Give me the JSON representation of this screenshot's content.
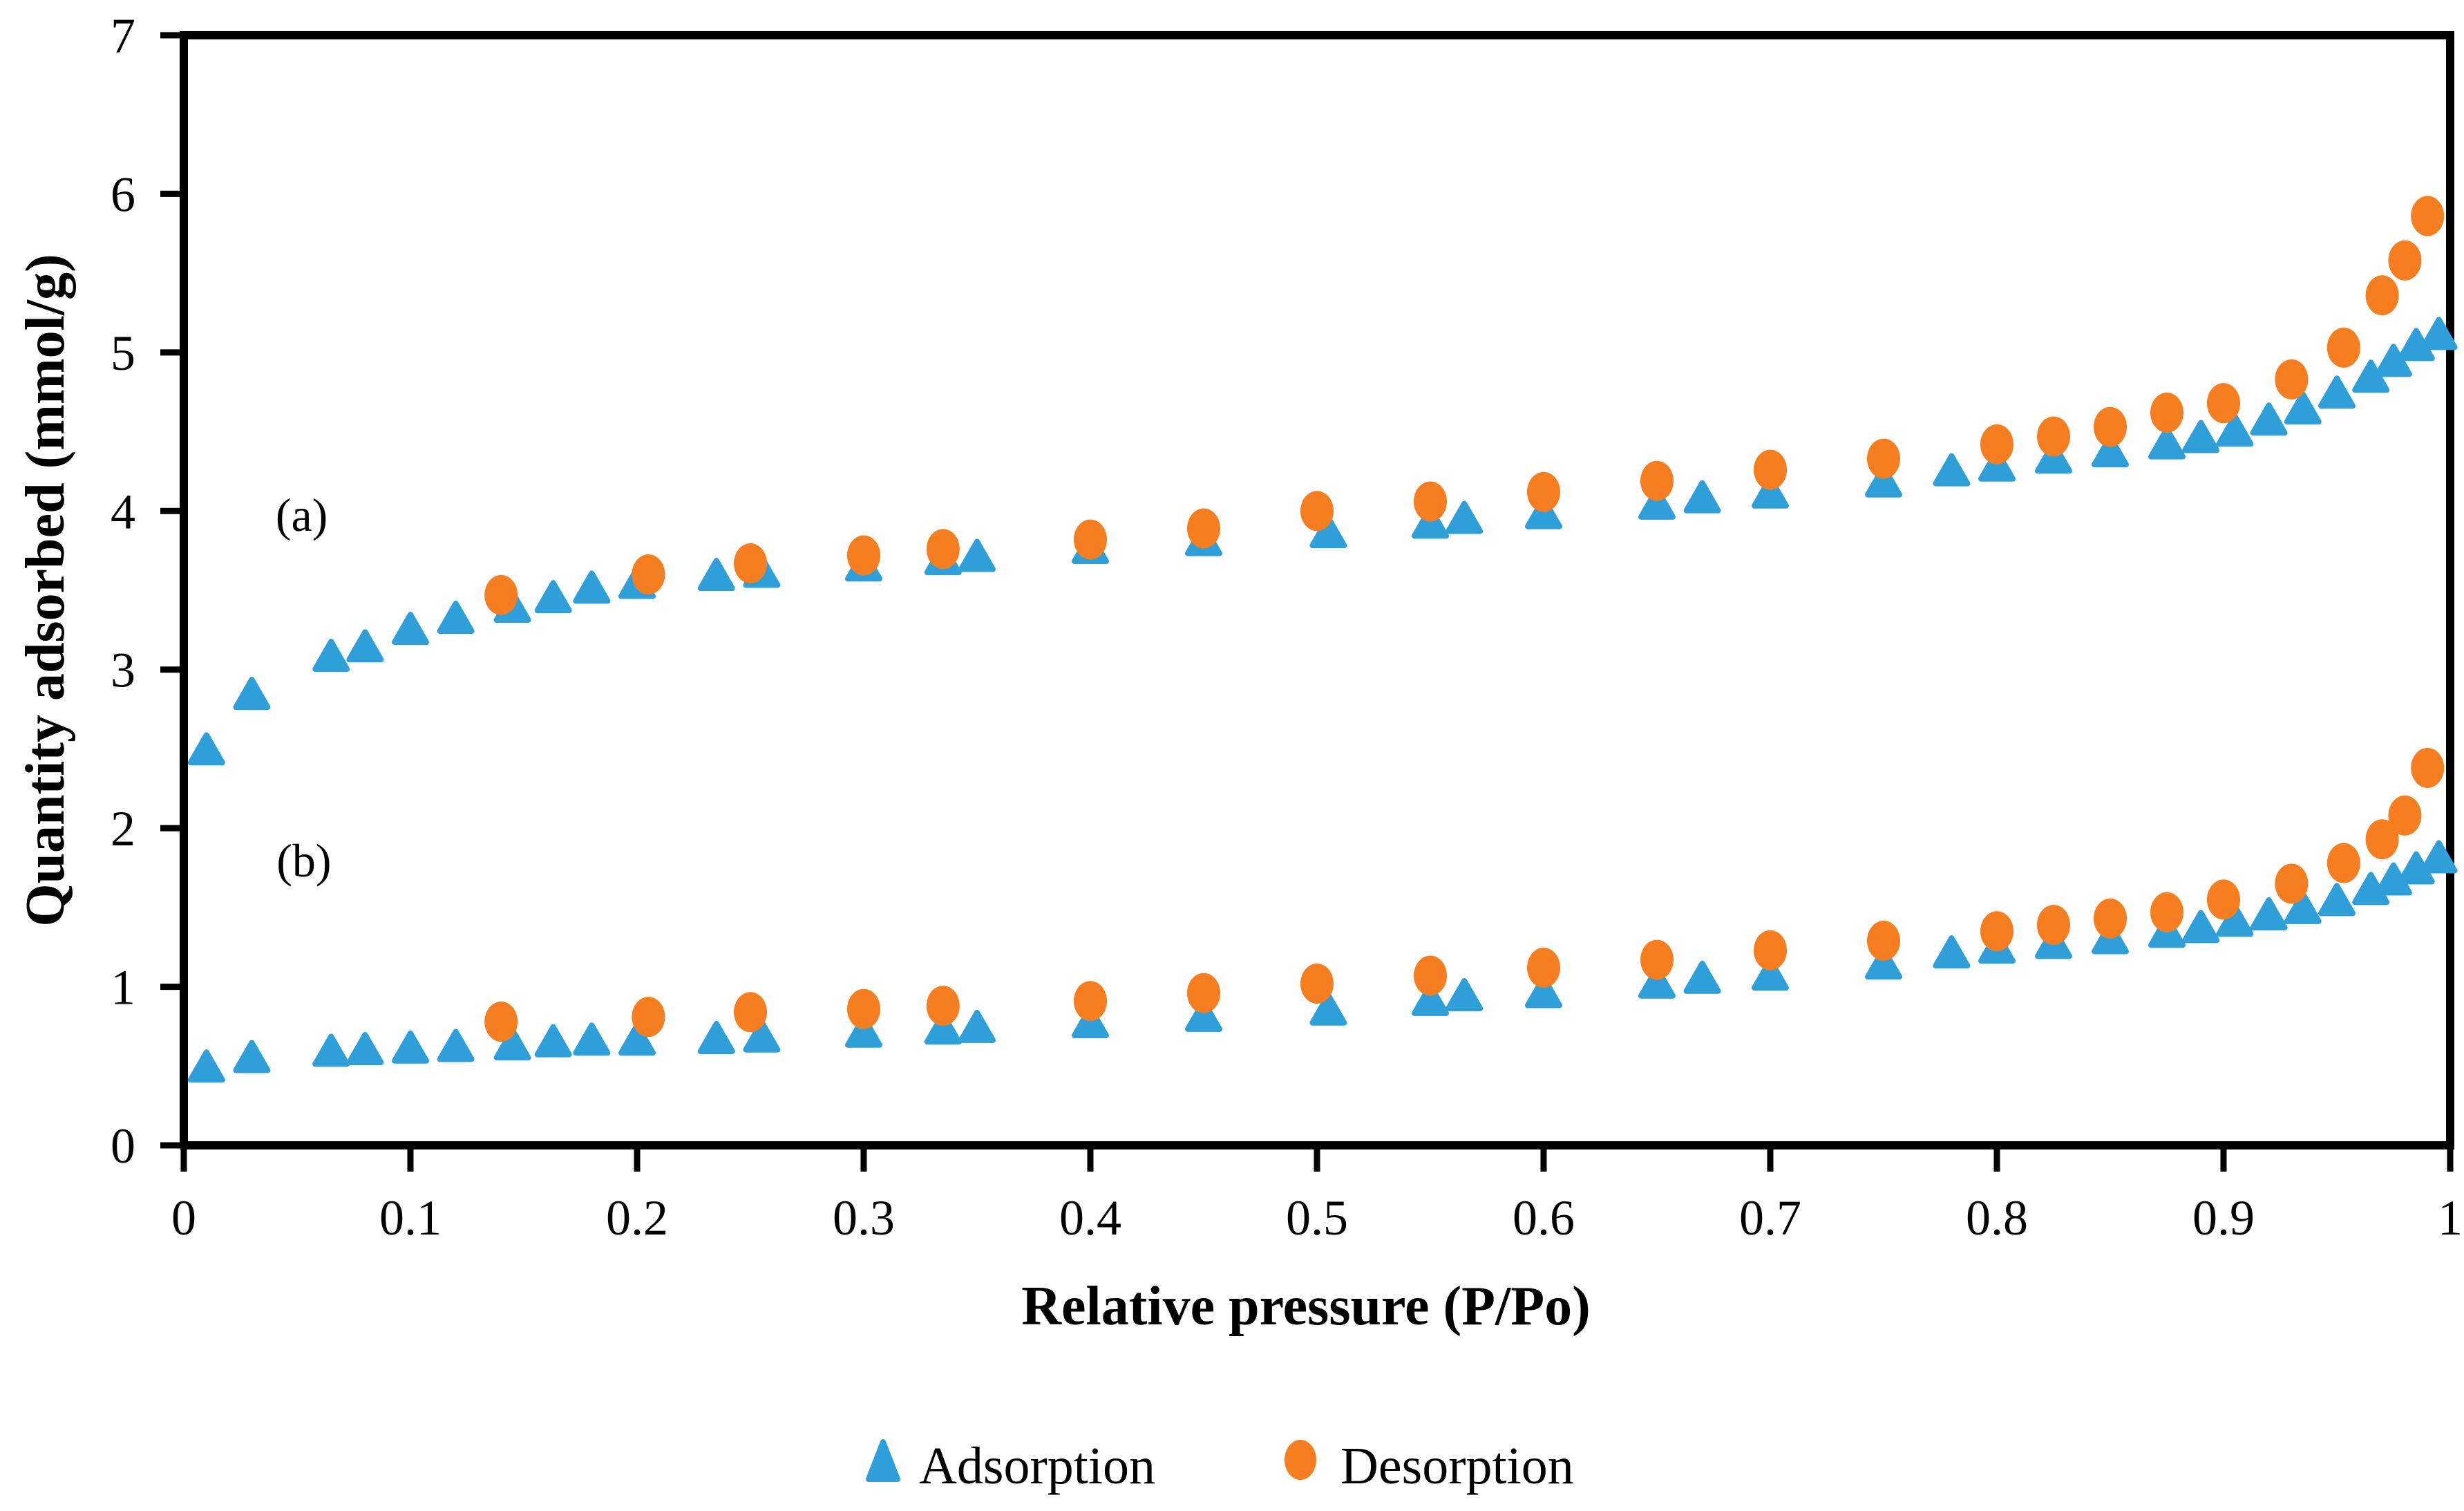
{
  "figure": {
    "background": "#ffffff"
  },
  "chart_data": {
    "type": "scatter",
    "title": "",
    "xlabel": "Relative pressure (P/Po)",
    "ylabel": "Quantity adsorbed (mmol/g)",
    "xlim": [
      0,
      1
    ],
    "ylim": [
      0,
      7
    ],
    "grid": false,
    "legend_position": "bottom",
    "x_ticks": [
      0,
      0.1,
      0.2,
      0.3,
      0.4,
      0.5,
      0.6,
      0.7,
      0.8,
      0.9,
      1
    ],
    "x_tick_labels": [
      "0",
      "0.1",
      "0.2",
      "0.3",
      "0.4",
      "0.5",
      "0.6",
      "0.7",
      "0.8",
      "0.9",
      "1"
    ],
    "y_ticks": [
      0,
      1,
      2,
      3,
      4,
      5,
      6,
      7
    ],
    "y_tick_labels": [
      "0",
      "1",
      "2",
      "3",
      "4",
      "5",
      "6",
      "7"
    ],
    "colors": {
      "adsorption": "#2F9FD9",
      "desorption": "#F67E20"
    },
    "annotations": [
      {
        "text": "(a)",
        "x": 0.052,
        "y": 3.98
      },
      {
        "text": "(b)",
        "x": 0.053,
        "y": 1.8
      }
    ],
    "legend": {
      "entries": [
        {
          "label": "Adsorption",
          "marker": "triangle",
          "color": "#2F9FD9"
        },
        {
          "label": "Desorption",
          "marker": "circle",
          "color": "#F67E20"
        }
      ]
    },
    "series": [
      {
        "name": "Adsorption (a)",
        "marker": "triangle",
        "color": "#2F9FD9",
        "points": [
          [
            0.01,
            2.5
          ],
          [
            0.03,
            2.85
          ],
          [
            0.065,
            3.09
          ],
          [
            0.08,
            3.15
          ],
          [
            0.1,
            3.26
          ],
          [
            0.12,
            3.33
          ],
          [
            0.145,
            3.4
          ],
          [
            0.163,
            3.46
          ],
          [
            0.18,
            3.52
          ],
          [
            0.2,
            3.55
          ],
          [
            0.235,
            3.6
          ],
          [
            0.255,
            3.62
          ],
          [
            0.3,
            3.66
          ],
          [
            0.335,
            3.7
          ],
          [
            0.35,
            3.72
          ],
          [
            0.4,
            3.77
          ],
          [
            0.45,
            3.82
          ],
          [
            0.505,
            3.87
          ],
          [
            0.55,
            3.93
          ],
          [
            0.565,
            3.96
          ],
          [
            0.6,
            3.99
          ],
          [
            0.65,
            4.05
          ],
          [
            0.67,
            4.09
          ],
          [
            0.7,
            4.12
          ],
          [
            0.75,
            4.19
          ],
          [
            0.78,
            4.26
          ],
          [
            0.8,
            4.29
          ],
          [
            0.825,
            4.34
          ],
          [
            0.85,
            4.38
          ],
          [
            0.875,
            4.43
          ],
          [
            0.89,
            4.47
          ],
          [
            0.905,
            4.51
          ],
          [
            0.92,
            4.58
          ],
          [
            0.935,
            4.65
          ],
          [
            0.95,
            4.75
          ],
          [
            0.965,
            4.85
          ],
          [
            0.975,
            4.95
          ],
          [
            0.985,
            5.05
          ],
          [
            0.995,
            5.12
          ]
        ]
      },
      {
        "name": "Desorption (a)",
        "marker": "circle",
        "color": "#F67E20",
        "points": [
          [
            0.14,
            3.47
          ],
          [
            0.205,
            3.6
          ],
          [
            0.25,
            3.67
          ],
          [
            0.3,
            3.72
          ],
          [
            0.335,
            3.76
          ],
          [
            0.4,
            3.82
          ],
          [
            0.45,
            3.89
          ],
          [
            0.5,
            4.0
          ],
          [
            0.55,
            4.06
          ],
          [
            0.6,
            4.12
          ],
          [
            0.65,
            4.19
          ],
          [
            0.7,
            4.26
          ],
          [
            0.75,
            4.33
          ],
          [
            0.8,
            4.42
          ],
          [
            0.825,
            4.47
          ],
          [
            0.85,
            4.53
          ],
          [
            0.875,
            4.62
          ],
          [
            0.9,
            4.68
          ],
          [
            0.93,
            4.83
          ],
          [
            0.953,
            5.03
          ],
          [
            0.97,
            5.36
          ],
          [
            0.98,
            5.58
          ],
          [
            0.99,
            5.86
          ]
        ]
      },
      {
        "name": "Adsorption (b)",
        "marker": "triangle",
        "color": "#2F9FD9",
        "points": [
          [
            0.01,
            0.5
          ],
          [
            0.03,
            0.56
          ],
          [
            0.065,
            0.6
          ],
          [
            0.08,
            0.61
          ],
          [
            0.1,
            0.62
          ],
          [
            0.12,
            0.63
          ],
          [
            0.145,
            0.64
          ],
          [
            0.163,
            0.66
          ],
          [
            0.18,
            0.67
          ],
          [
            0.2,
            0.67
          ],
          [
            0.235,
            0.68
          ],
          [
            0.255,
            0.69
          ],
          [
            0.3,
            0.72
          ],
          [
            0.335,
            0.74
          ],
          [
            0.35,
            0.75
          ],
          [
            0.4,
            0.78
          ],
          [
            0.45,
            0.82
          ],
          [
            0.505,
            0.86
          ],
          [
            0.55,
            0.92
          ],
          [
            0.565,
            0.95
          ],
          [
            0.6,
            0.97
          ],
          [
            0.65,
            1.03
          ],
          [
            0.67,
            1.06
          ],
          [
            0.7,
            1.08
          ],
          [
            0.75,
            1.15
          ],
          [
            0.78,
            1.22
          ],
          [
            0.8,
            1.25
          ],
          [
            0.825,
            1.28
          ],
          [
            0.85,
            1.31
          ],
          [
            0.875,
            1.35
          ],
          [
            0.89,
            1.38
          ],
          [
            0.905,
            1.42
          ],
          [
            0.92,
            1.46
          ],
          [
            0.935,
            1.5
          ],
          [
            0.95,
            1.55
          ],
          [
            0.965,
            1.62
          ],
          [
            0.975,
            1.68
          ],
          [
            0.985,
            1.75
          ],
          [
            0.995,
            1.82
          ]
        ]
      },
      {
        "name": "Desorption (b)",
        "marker": "circle",
        "color": "#F67E20",
        "points": [
          [
            0.14,
            0.78
          ],
          [
            0.205,
            0.81
          ],
          [
            0.25,
            0.84
          ],
          [
            0.3,
            0.86
          ],
          [
            0.335,
            0.88
          ],
          [
            0.4,
            0.91
          ],
          [
            0.45,
            0.96
          ],
          [
            0.5,
            1.02
          ],
          [
            0.55,
            1.07
          ],
          [
            0.6,
            1.12
          ],
          [
            0.65,
            1.17
          ],
          [
            0.7,
            1.23
          ],
          [
            0.75,
            1.29
          ],
          [
            0.8,
            1.35
          ],
          [
            0.825,
            1.39
          ],
          [
            0.85,
            1.43
          ],
          [
            0.875,
            1.47
          ],
          [
            0.9,
            1.55
          ],
          [
            0.93,
            1.65
          ],
          [
            0.953,
            1.78
          ],
          [
            0.97,
            1.93
          ],
          [
            0.98,
            2.08
          ],
          [
            0.99,
            2.38
          ]
        ]
      }
    ]
  }
}
